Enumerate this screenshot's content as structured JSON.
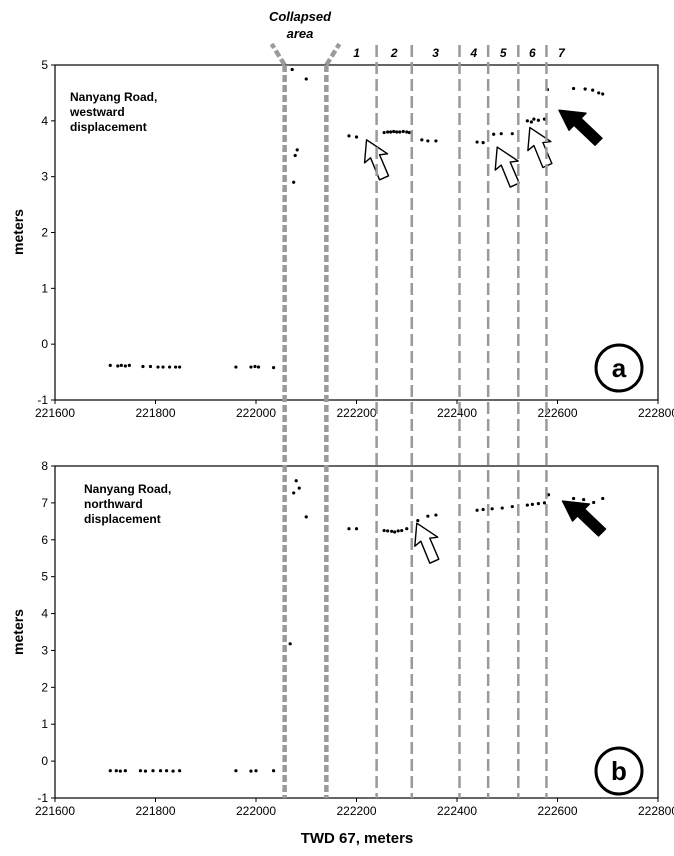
{
  "chart_data": [
    {
      "id": "a",
      "type": "scatter",
      "panel_label": "a",
      "title_lines": [
        "Nanyang Road,",
        "westward",
        "displacement"
      ],
      "ylabel": "meters",
      "xlim": [
        221600,
        222800
      ],
      "ylim": [
        -1,
        5
      ],
      "xticks": [
        221600,
        221800,
        222000,
        222200,
        222400,
        222600,
        222800
      ],
      "yticks": [
        -1,
        0,
        1,
        2,
        3,
        4,
        5
      ],
      "grid": false,
      "points": [
        [
          221710,
          -0.38
        ],
        [
          221725,
          -0.39
        ],
        [
          221732,
          -0.38
        ],
        [
          221740,
          -0.39
        ],
        [
          221748,
          -0.38
        ],
        [
          221775,
          -0.4
        ],
        [
          221790,
          -0.4
        ],
        [
          221805,
          -0.41
        ],
        [
          221815,
          -0.41
        ],
        [
          221828,
          -0.41
        ],
        [
          221840,
          -0.41
        ],
        [
          221848,
          -0.41
        ],
        [
          221960,
          -0.41
        ],
        [
          221990,
          -0.41
        ],
        [
          221998,
          -0.4
        ],
        [
          222005,
          -0.41
        ],
        [
          222035,
          -0.42
        ],
        [
          222072,
          4.92
        ],
        [
          222075,
          2.9
        ],
        [
          222078,
          3.38
        ],
        [
          222082,
          3.48
        ],
        [
          222100,
          4.75
        ],
        [
          222185,
          3.73
        ],
        [
          222200,
          3.71
        ],
        [
          222255,
          3.79
        ],
        [
          222262,
          3.8
        ],
        [
          222268,
          3.8
        ],
        [
          222274,
          3.81
        ],
        [
          222280,
          3.8
        ],
        [
          222286,
          3.8
        ],
        [
          222293,
          3.81
        ],
        [
          222300,
          3.8
        ],
        [
          222305,
          3.79
        ],
        [
          222330,
          3.66
        ],
        [
          222342,
          3.64
        ],
        [
          222358,
          3.64
        ],
        [
          222440,
          3.62
        ],
        [
          222452,
          3.61
        ],
        [
          222473,
          3.76
        ],
        [
          222488,
          3.77
        ],
        [
          222510,
          3.77
        ],
        [
          222540,
          4.0
        ],
        [
          222548,
          3.98
        ],
        [
          222553,
          4.03
        ],
        [
          222562,
          4.01
        ],
        [
          222574,
          4.03
        ],
        [
          222580,
          4.56
        ],
        [
          222632,
          4.58
        ],
        [
          222655,
          4.57
        ],
        [
          222670,
          4.55
        ],
        [
          222682,
          4.5
        ],
        [
          222690,
          4.48
        ]
      ]
    },
    {
      "id": "b",
      "type": "scatter",
      "panel_label": "b",
      "title_lines": [
        "Nanyang Road,",
        "northward",
        "displacement"
      ],
      "xlabel": "TWD 67, meters",
      "ylabel": "meters",
      "xlim": [
        221600,
        222800
      ],
      "ylim": [
        -1,
        8
      ],
      "xticks": [
        221600,
        221800,
        222000,
        222200,
        222400,
        222600,
        222800
      ],
      "yticks": [
        -1,
        0,
        1,
        2,
        3,
        4,
        5,
        6,
        7,
        8
      ],
      "grid": false,
      "points": [
        [
          221710,
          -0.26
        ],
        [
          221722,
          -0.26
        ],
        [
          221730,
          -0.27
        ],
        [
          221740,
          -0.26
        ],
        [
          221770,
          -0.26
        ],
        [
          221780,
          -0.27
        ],
        [
          221795,
          -0.26
        ],
        [
          221810,
          -0.26
        ],
        [
          221822,
          -0.26
        ],
        [
          221835,
          -0.27
        ],
        [
          221848,
          -0.26
        ],
        [
          221960,
          -0.26
        ],
        [
          221990,
          -0.27
        ],
        [
          222000,
          -0.26
        ],
        [
          222035,
          -0.26
        ],
        [
          222068,
          3.18
        ],
        [
          222075,
          7.27
        ],
        [
          222080,
          7.6
        ],
        [
          222086,
          7.4
        ],
        [
          222100,
          6.62
        ],
        [
          222185,
          6.3
        ],
        [
          222200,
          6.3
        ],
        [
          222255,
          6.25
        ],
        [
          222262,
          6.24
        ],
        [
          222270,
          6.23
        ],
        [
          222276,
          6.21
        ],
        [
          222283,
          6.24
        ],
        [
          222290,
          6.25
        ],
        [
          222300,
          6.3
        ],
        [
          222322,
          6.52
        ],
        [
          222342,
          6.64
        ],
        [
          222358,
          6.67
        ],
        [
          222440,
          6.8
        ],
        [
          222452,
          6.82
        ],
        [
          222470,
          6.84
        ],
        [
          222490,
          6.86
        ],
        [
          222510,
          6.9
        ],
        [
          222540,
          6.94
        ],
        [
          222550,
          6.96
        ],
        [
          222562,
          6.98
        ],
        [
          222574,
          7.0
        ],
        [
          222582,
          7.22
        ],
        [
          222632,
          7.12
        ],
        [
          222652,
          7.09
        ],
        [
          222672,
          7.01
        ],
        [
          222690,
          7.12
        ]
      ]
    }
  ],
  "annotations": {
    "collapsed_area_lines": [
      "Collapsed",
      "area"
    ],
    "zones": [
      "1",
      "2",
      "3",
      "4",
      "5",
      "6",
      "7"
    ]
  },
  "guides": {
    "collapsed_x": [
      222057,
      222140
    ],
    "zone_x": [
      222240,
      222310,
      222405,
      222462,
      222522,
      222578
    ]
  },
  "arrows_a": [
    {
      "style": "open",
      "tip": [
        222220,
        3.66
      ]
    },
    {
      "style": "open",
      "tip": [
        222480,
        3.53
      ]
    },
    {
      "style": "open",
      "tip": [
        222545,
        3.88
      ]
    },
    {
      "style": "filled",
      "tip": [
        222603,
        4.19
      ]
    }
  ],
  "arrows_b": [
    {
      "style": "open",
      "tip": [
        222320,
        6.45
      ]
    },
    {
      "style": "filled",
      "tip": [
        222610,
        7.05
      ]
    }
  ]
}
